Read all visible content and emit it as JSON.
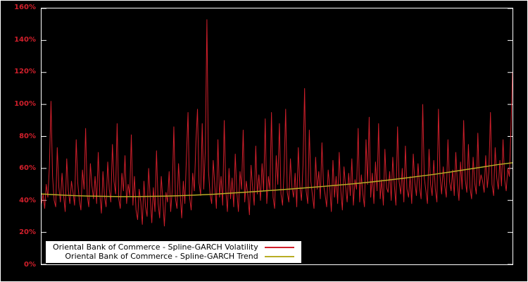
{
  "chart": {
    "background": "#000000",
    "frame_border_color": "#ffffff",
    "plot_border_color": "#ffffff"
  },
  "chart_data": {
    "type": "line",
    "title": "",
    "xlabel": "",
    "ylabel": "",
    "ylim": [
      0,
      160
    ],
    "n_points": 300,
    "grid": false,
    "legend_position": "bottom-left",
    "axis_label_color": "#d01f2b",
    "yticks": [
      {
        "value": 0,
        "label": "0%"
      },
      {
        "value": 20,
        "label": "20%"
      },
      {
        "value": 40,
        "label": "40%"
      },
      {
        "value": 60,
        "label": "60%"
      },
      {
        "value": 80,
        "label": "80%"
      },
      {
        "value": 100,
        "label": "100%"
      },
      {
        "value": 120,
        "label": "120%"
      },
      {
        "value": 140,
        "label": "140%"
      },
      {
        "value": 160,
        "label": "160%"
      }
    ],
    "series": [
      {
        "name": "Oriental Bank of Commerce - Spline-GARCH Volatility",
        "color": "#d01f2b",
        "values": [
          38,
          44,
          35,
          50,
          42,
          61,
          102,
          55,
          40,
          36,
          73,
          48,
          39,
          57,
          43,
          33,
          66,
          46,
          38,
          52,
          45,
          37,
          78,
          51,
          40,
          34,
          59,
          47,
          85,
          43,
          36,
          63,
          49,
          41,
          55,
          38,
          70,
          44,
          32,
          58,
          42,
          36,
          64,
          47,
          39,
          75,
          52,
          44,
          88,
          41,
          35,
          57,
          46,
          68,
          38,
          50,
          43,
          81,
          37,
          55,
          34,
          28,
          47,
          39,
          25,
          52,
          36,
          30,
          60,
          42,
          26,
          48,
          33,
          71,
          38,
          29,
          55,
          40,
          24,
          45,
          39,
          58,
          33,
          47,
          86,
          41,
          35,
          63,
          44,
          29,
          52,
          38,
          68,
          95,
          42,
          34,
          57,
          46,
          76,
          97,
          51,
          43,
          88,
          47,
          72,
          153,
          58,
          44,
          38,
          65,
          49,
          35,
          78,
          42,
          55,
          37,
          90,
          46,
          33,
          60,
          41,
          54,
          36,
          69,
          45,
          33,
          58,
          47,
          84,
          39,
          52,
          43,
          31,
          62,
          48,
          37,
          74,
          44,
          56,
          40,
          63,
          46,
          91,
          38,
          55,
          47,
          95,
          42,
          35,
          68,
          50,
          88,
          44,
          37,
          59,
          97,
          45,
          39,
          66,
          48,
          42,
          57,
          36,
          73,
          49,
          40,
          62,
          110,
          46,
          38,
          84,
          52,
          43,
          35,
          67,
          47,
          58,
          41,
          76,
          50,
          44,
          36,
          59,
          48,
          33,
          65,
          42,
          55,
          38,
          70,
          46,
          34,
          61,
          49,
          39,
          57,
          43,
          66,
          37,
          53,
          47,
          85,
          39,
          56,
          44,
          36,
          78,
          50,
          92,
          42,
          57,
          38,
          64,
          46,
          88,
          41,
          53,
          37,
          72,
          48,
          45,
          58,
          40,
          67,
          49,
          37,
          86,
          52,
          44,
          60,
          39,
          74,
          47,
          42,
          55,
          38,
          69,
          51,
          43,
          63,
          48,
          41,
          100,
          54,
          46,
          38,
          72,
          50,
          43,
          65,
          47,
          39,
          97,
          55,
          44,
          61,
          49,
          42,
          78,
          52,
          46,
          59,
          43,
          70,
          50,
          40,
          64,
          47,
          90,
          53,
          45,
          75,
          48,
          41,
          67,
          51,
          44,
          82,
          49,
          56,
          52,
          45,
          68,
          48,
          58,
          95,
          50,
          43,
          73,
          54,
          47,
          65,
          49,
          78,
          53,
          46,
          60,
          55,
          85,
          120
        ]
      },
      {
        "name": "Oriental Bank of Commerce - Spline-GARCH Trend",
        "color": "#b8ad25",
        "control_values": [
          44.0,
          43.5,
          43.0,
          42.7,
          42.5,
          42.4,
          42.4,
          42.5,
          42.7,
          43.0,
          43.4,
          43.9,
          44.5,
          45.1,
          45.8,
          46.5,
          47.2,
          48.0,
          48.8,
          49.6,
          50.5,
          51.5,
          52.6,
          53.8,
          55.0,
          56.3,
          57.7,
          59.2,
          60.7,
          62.3,
          63.5
        ]
      }
    ]
  }
}
